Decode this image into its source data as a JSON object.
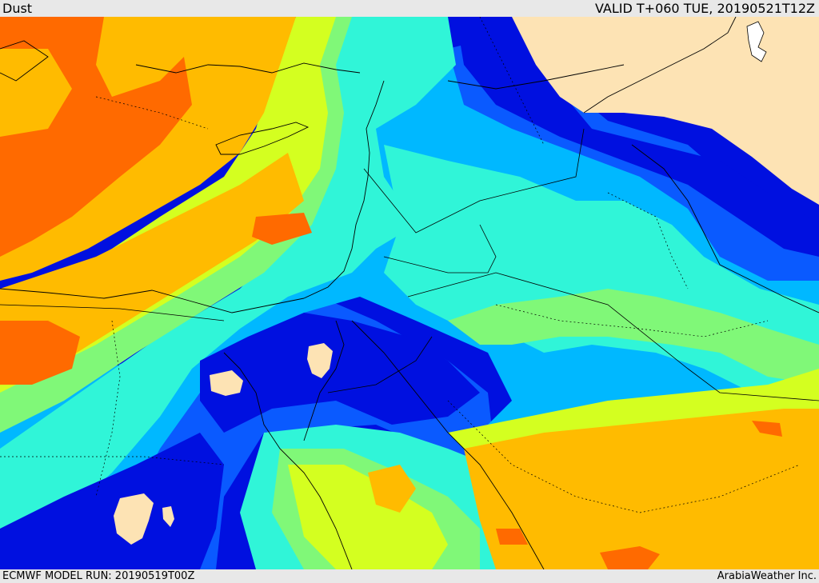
{
  "header": {
    "product": "Dust",
    "valid": "VALID T+060 TUE, 20190521T12Z"
  },
  "footer": {
    "model_run": "ECMWF MODEL RUN: 20190519T00Z",
    "credit": "ArabiaWeather Inc."
  },
  "colors": {
    "orange_high": "#ff6a00",
    "orange": "#ffbb00",
    "yellow": "#ffd200",
    "lime": "#d4ff20",
    "green": "#80f878",
    "aqua": "#30f5d8",
    "cyan": "#00b8ff",
    "blue": "#0a5aff",
    "deep_blue": "#0010e0",
    "land_clear": "#fde3b4",
    "border": "#000000"
  }
}
